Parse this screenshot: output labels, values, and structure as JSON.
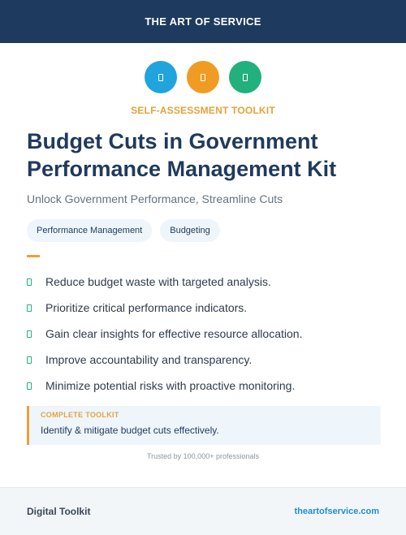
{
  "header": {
    "brand": "THE ART OF SERVICE"
  },
  "icons": [
    {
      "name": "document-icon",
      "color": "#21a3de"
    },
    {
      "name": "clipboard-icon",
      "color": "#f09c24"
    },
    {
      "name": "checklist-icon",
      "color": "#22b07d"
    }
  ],
  "eyebrow": "SELF-ASSESSMENT TOOLKIT",
  "title": "Budget Cuts in Government Performance Management Kit",
  "subtitle": "Unlock Government Performance, Streamline Cuts",
  "tags": [
    "Performance Management",
    "Budgeting"
  ],
  "bullets": [
    "Reduce budget waste with targeted analysis.",
    "Prioritize critical performance indicators.",
    "Gain clear insights for effective resource allocation.",
    "Improve accountability and transparency.",
    "Minimize potential risks with proactive monitoring."
  ],
  "callout": {
    "label": "COMPLETE TOOLKIT",
    "text": "Identify & mitigate budget cuts effectively."
  },
  "trusted": "Trusted by 100,000+ professionals",
  "footer": {
    "left": "Digital Toolkit",
    "right": "theartofservice.com"
  },
  "colors": {
    "navy": "#1e3a5f",
    "accent": "#e6a23c",
    "link": "#1e8fd1",
    "check": "#22b07d"
  }
}
